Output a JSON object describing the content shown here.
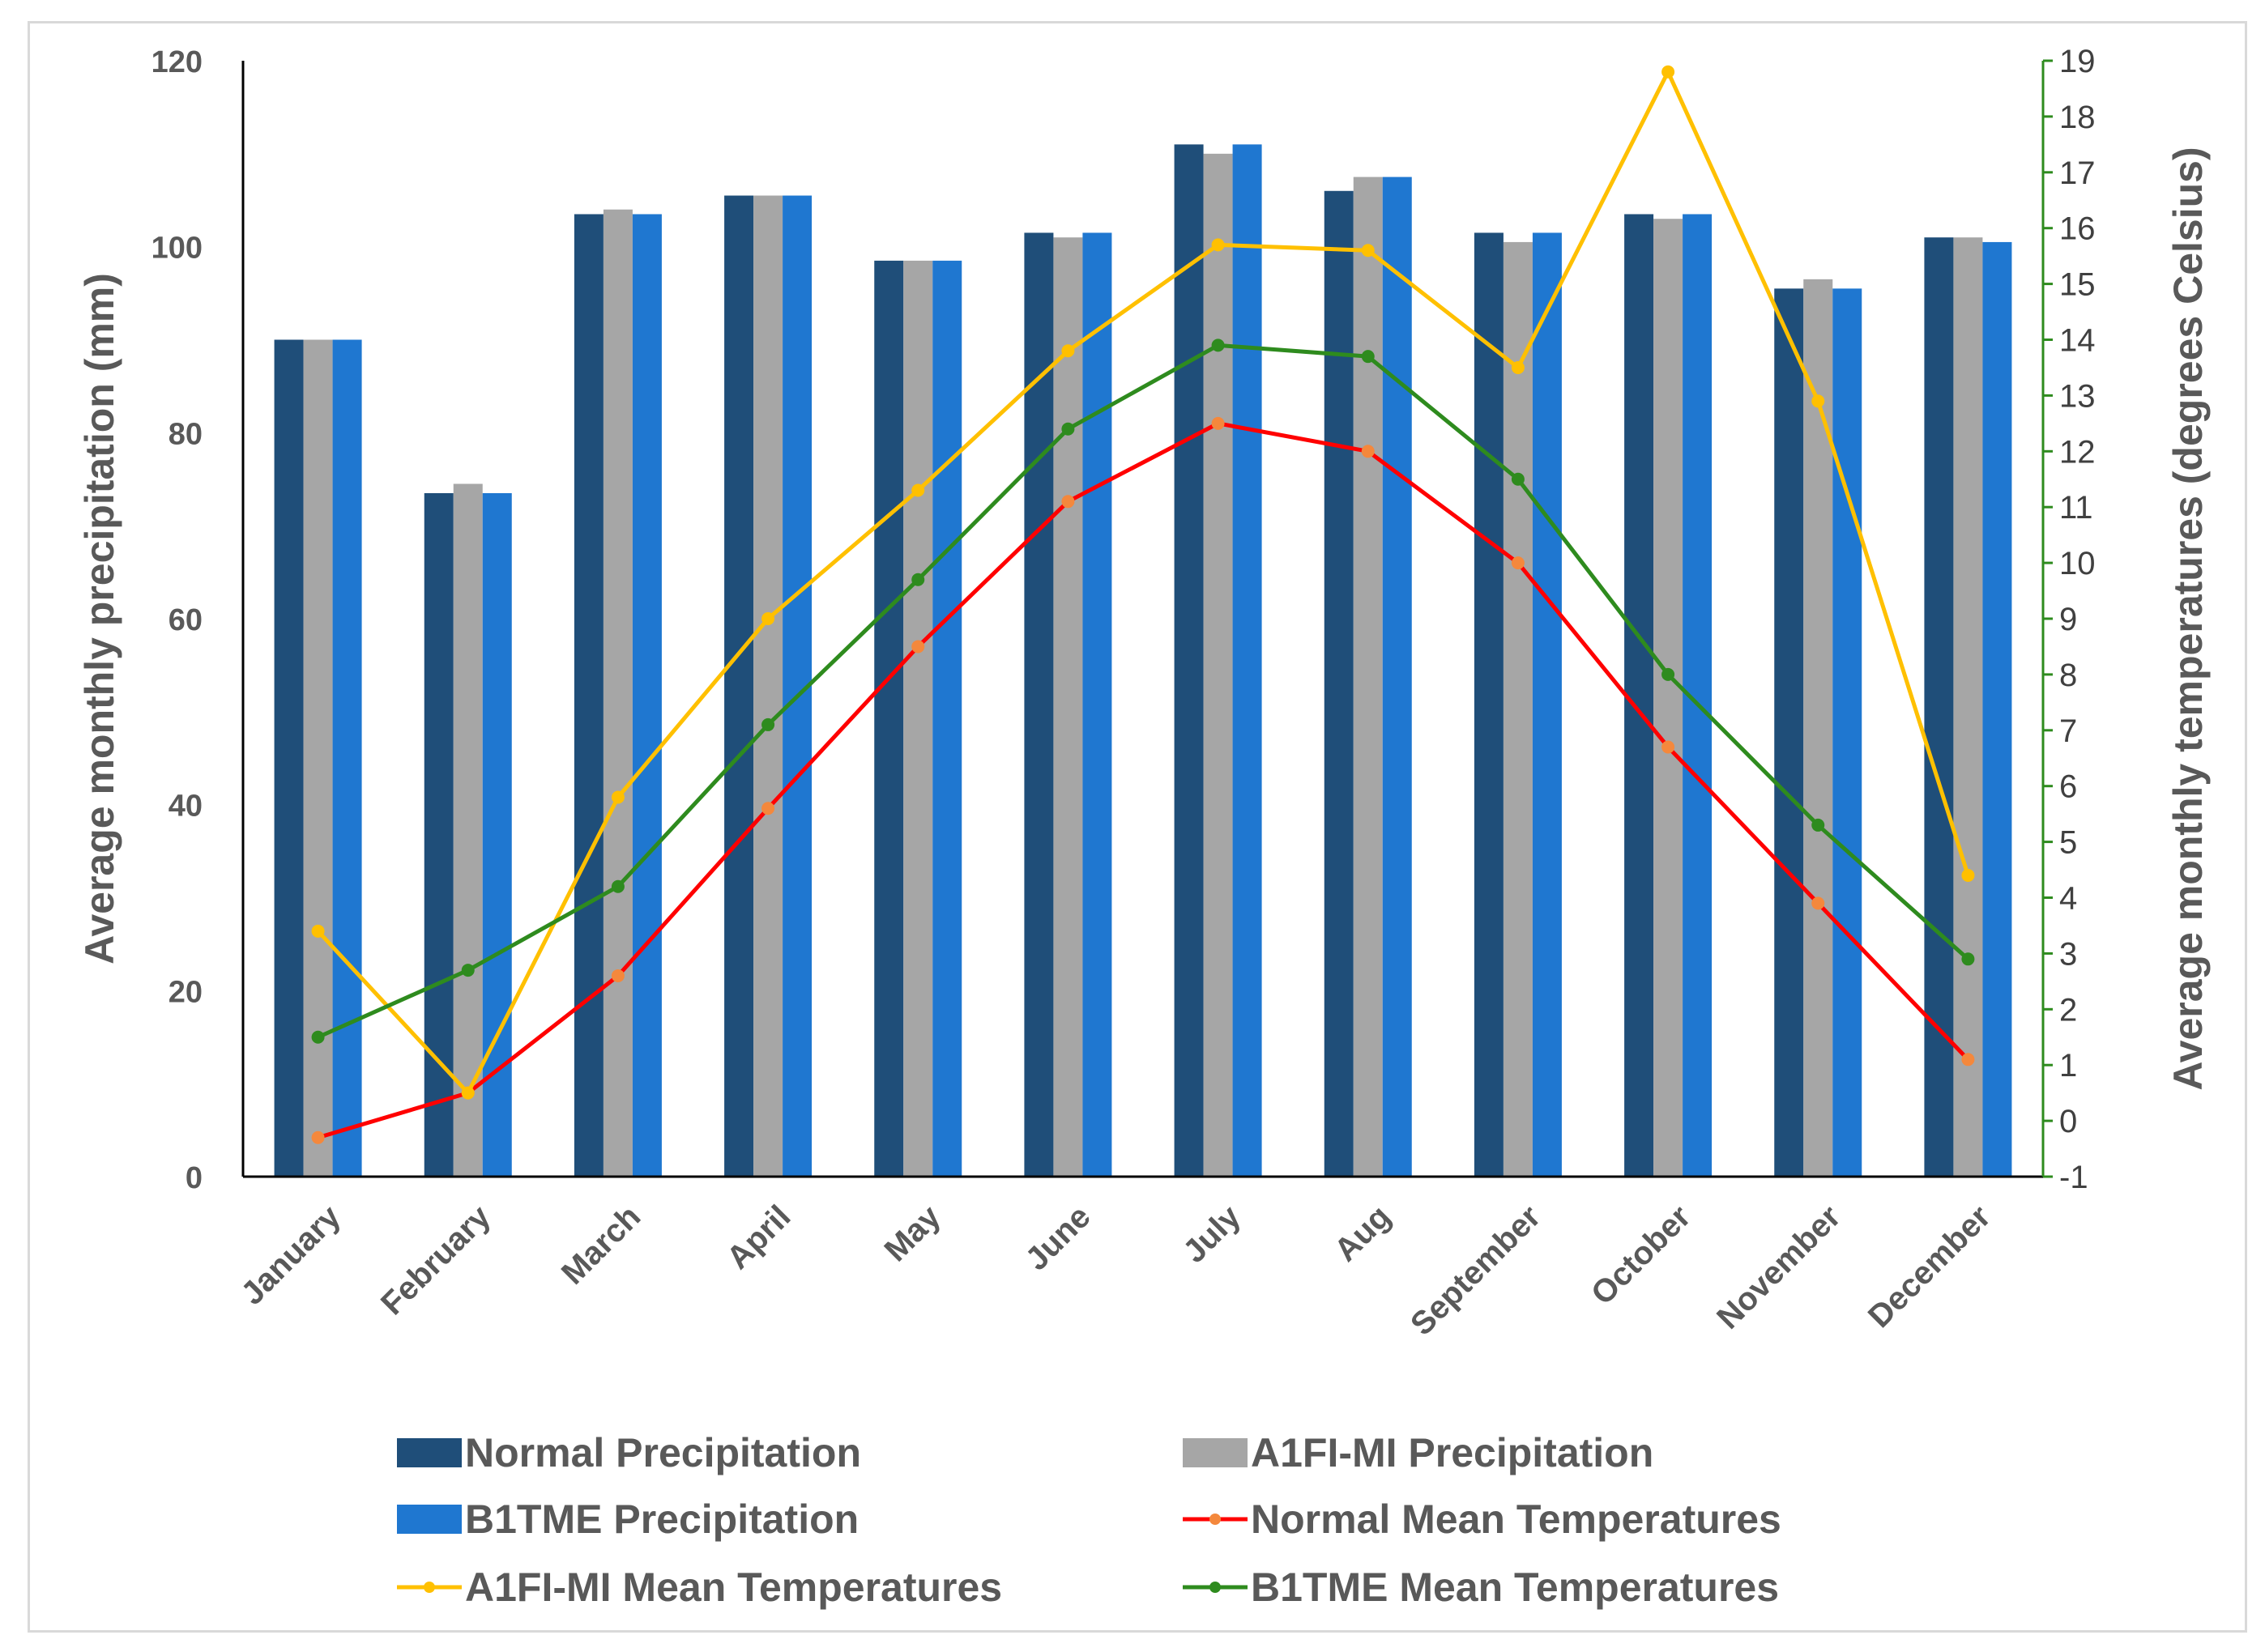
{
  "chart_data": {
    "type": "bar",
    "title": "",
    "categories": [
      "January",
      "February",
      "March",
      "April",
      "May",
      "June",
      "July",
      "Aug",
      "September",
      "October",
      "November",
      "December"
    ],
    "bar_series": [
      {
        "name": "Normal Precipitation",
        "color": "#1f4e79",
        "values": [
          90,
          73.5,
          103.5,
          105.5,
          98.5,
          101.5,
          111,
          106,
          101.5,
          103.5,
          95.5,
          101
        ]
      },
      {
        "name": "A1FI-MI Precipitation",
        "color": "#a6a6a6",
        "values": [
          90,
          74.5,
          104,
          105.5,
          98.5,
          101,
          110,
          107.5,
          100.5,
          103,
          96.5,
          101
        ]
      },
      {
        "name": "B1TME Precipitation",
        "color": "#1f77d0",
        "values": [
          90,
          73.5,
          103.5,
          105.5,
          98.5,
          101.5,
          111,
          107.5,
          101.5,
          103.5,
          95.5,
          100.5
        ]
      }
    ],
    "line_series": [
      {
        "name": "Normal Mean Temperatures",
        "color": "#ff0000",
        "marker_color": "#f4883c",
        "values": [
          -0.3,
          0.5,
          2.6,
          5.6,
          8.5,
          11.1,
          12.5,
          12,
          10,
          6.7,
          3.9,
          1.1
        ]
      },
      {
        "name": "A1FI-MI Mean Temperatures",
        "color": "#ffc000",
        "marker_color": "#ffc000",
        "values": [
          3.4,
          0.5,
          5.8,
          9,
          11.3,
          13.8,
          15.7,
          15.6,
          13.5,
          18.8,
          12.9,
          4.4
        ]
      },
      {
        "name": "B1TME Mean Temperatures",
        "color": "#2e8b1e",
        "marker_color": "#2e8b1e",
        "values": [
          1.5,
          2.7,
          4.2,
          7.1,
          9.7,
          12.4,
          13.9,
          13.7,
          11.5,
          8,
          5.3,
          2.9
        ]
      }
    ],
    "ylabel": "Average monthly precipitation (mm)",
    "ylim": [
      0,
      120
    ],
    "yticks": [
      "0",
      "20",
      "40",
      "60",
      "80",
      "100",
      "120"
    ],
    "y2label": "Average monthly temperatures (degrees Celsius)",
    "y2lim": [
      -1,
      19
    ],
    "y2ticks": [
      "-1",
      "0",
      "1",
      "2",
      "3",
      "4",
      "5",
      "6",
      "7",
      "8",
      "9",
      "10",
      "11",
      "12",
      "13",
      "14",
      "15",
      "16",
      "17",
      "18",
      "19"
    ],
    "legend_position": "bottom",
    "grid": false
  }
}
